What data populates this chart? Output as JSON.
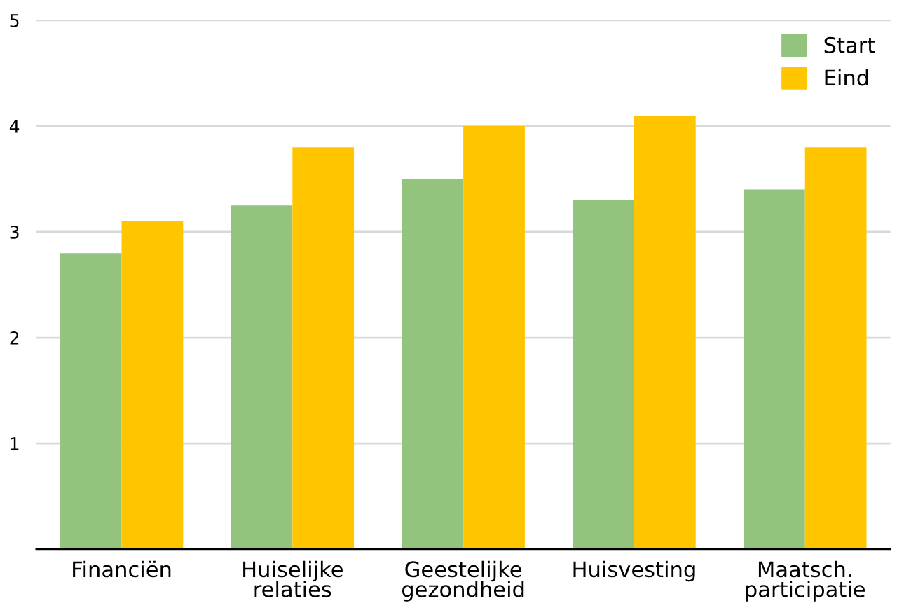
{
  "chart_data": {
    "type": "bar",
    "categories": [
      "Financiën",
      "Huiselijke\nrelaties",
      "Geestelijke\ngezondheid",
      "Huisvesting",
      "Maatsch.\nparticipatie"
    ],
    "series": [
      {
        "name": "Start",
        "color": "#93c47d",
        "values": [
          2.8,
          3.25,
          3.5,
          3.3,
          3.4
        ]
      },
      {
        "name": "Eind",
        "color": "#ffc600",
        "values": [
          3.1,
          3.8,
          4.0,
          4.1,
          3.8
        ]
      }
    ],
    "ylim": [
      0,
      5
    ],
    "yticks": [
      1,
      2,
      3,
      4,
      5
    ],
    "grid": "y",
    "legend": "top right"
  }
}
